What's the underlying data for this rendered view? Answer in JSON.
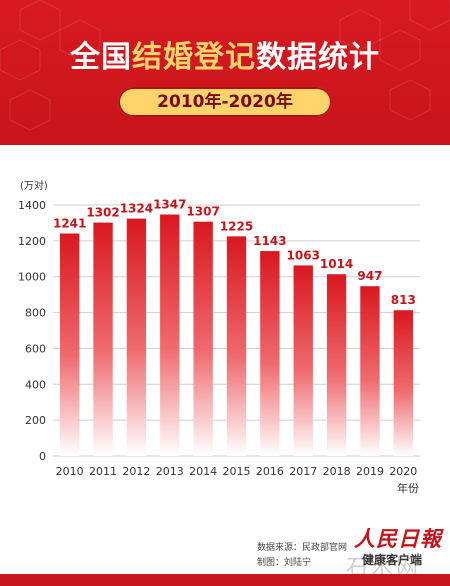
{
  "header": {
    "title_prefix": "全国",
    "title_highlight": "结婚登记",
    "title_suffix": "数据统计",
    "period": "2010年-2020年"
  },
  "colors": {
    "brand_red": "#c8141b",
    "title_highlight": "#ffd46a",
    "pill": "#ffd56b",
    "bar_top": "#d9181f",
    "bar_bottom": "#ffffff",
    "value_label": "#c8141b"
  },
  "chart_data": {
    "type": "bar",
    "categories": [
      "2010",
      "2011",
      "2012",
      "2013",
      "2014",
      "2015",
      "2016",
      "2017",
      "2018",
      "2019",
      "2020"
    ],
    "values": [
      1241,
      1302,
      1324,
      1347,
      1307,
      1225,
      1143,
      1063,
      1014,
      947,
      813
    ],
    "y_unit_label": "(万对)",
    "x_unit_label": "年份",
    "ylim": [
      0,
      1400
    ],
    "yticks": [
      0,
      200,
      400,
      600,
      800,
      1000,
      1200,
      1400
    ],
    "grid": true
  },
  "footer": {
    "source": "数据来源：民政部官网",
    "credit": "制图：刘陆宁",
    "brand": "人民日報",
    "sub_brand": "健康客户端",
    "watermark": "石木网"
  }
}
